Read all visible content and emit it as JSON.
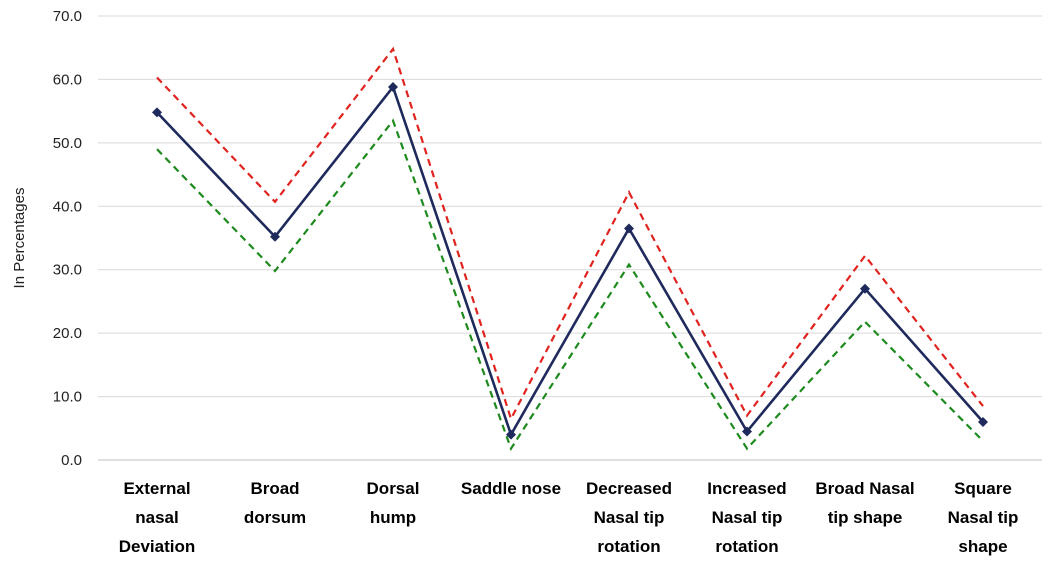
{
  "chart_data": {
    "type": "line",
    "title": "",
    "xlabel": "",
    "ylabel": "In Percentages",
    "ylim": [
      0,
      70
    ],
    "yticks": [
      "0.0",
      "10.0",
      "20.0",
      "30.0",
      "40.0",
      "50.0",
      "60.0",
      "70.0"
    ],
    "grid": true,
    "legend": "none",
    "categories": [
      [
        "External",
        "nasal",
        "Deviation"
      ],
      [
        "Broad",
        "dorsum"
      ],
      [
        "Dorsal",
        "hump"
      ],
      [
        "Saddle nose"
      ],
      [
        "Decreased",
        "Nasal tip",
        "rotation"
      ],
      [
        "Increased",
        "Nasal tip",
        "rotation"
      ],
      [
        "Broad Nasal",
        "tip shape"
      ],
      [
        "Square",
        "Nasal tip",
        "shape"
      ]
    ],
    "series": [
      {
        "role": "main",
        "color": "#1f2a5c",
        "dash": "solid",
        "marker": "diamond",
        "values": [
          54.8,
          35.2,
          58.8,
          4.0,
          36.5,
          4.5,
          27.0,
          6.0
        ]
      },
      {
        "role": "upper",
        "color": "#e0231f",
        "dash": "dashed",
        "marker": "none",
        "values": [
          60.3,
          40.7,
          64.8,
          6.5,
          42.2,
          7.0,
          32.2,
          8.5
        ]
      },
      {
        "role": "lower",
        "color": "#1e8a1e",
        "dash": "dashed",
        "marker": "none",
        "values": [
          49.0,
          29.8,
          53.5,
          1.8,
          30.8,
          1.8,
          21.8,
          3.0
        ]
      }
    ]
  }
}
